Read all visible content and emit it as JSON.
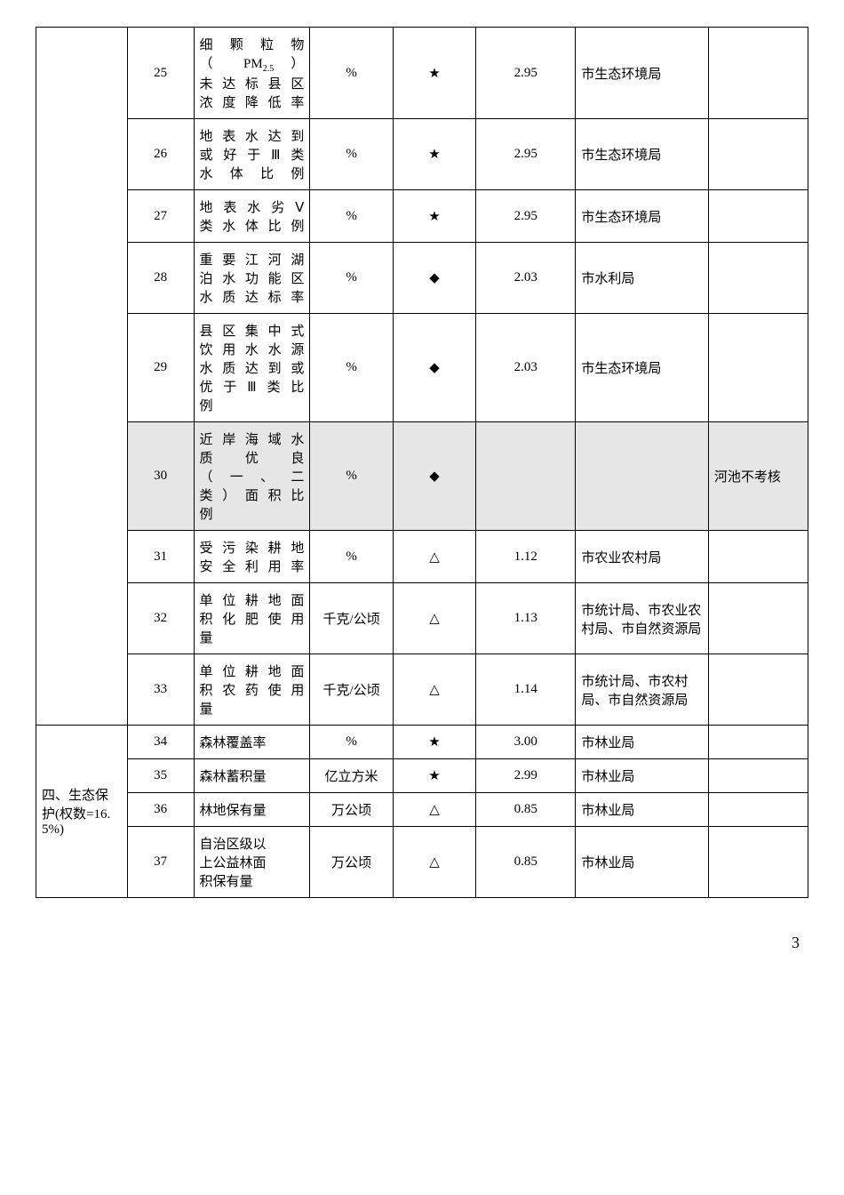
{
  "rows": [
    {
      "no": "25",
      "indicator_html": "细 颗 粒 物<br>（ PM<sub>2.5</sub> ）<br>未达标县区<br>浓度降低率",
      "unit": "%",
      "mark": "★",
      "weight": "2.95",
      "owner": "市生态环境局",
      "note": "",
      "shade": false,
      "ownerLeft": true
    },
    {
      "no": "26",
      "indicator_html": "地表水达到<br>或好于Ⅲ类<br>水体比例",
      "unit": "%",
      "mark": "★",
      "weight": "2.95",
      "owner": "市生态环境局",
      "note": "",
      "shade": false,
      "ownerLeft": true
    },
    {
      "no": "27",
      "indicator_html": "地表水劣Ⅴ<br>类水体比例",
      "unit": "%",
      "mark": "★",
      "weight": "2.95",
      "owner": "市生态环境局",
      "note": "",
      "shade": false,
      "ownerLeft": true
    },
    {
      "no": "28",
      "indicator_html": "重要江河湖<br>泊水功能区<br>水质达标率",
      "unit": "%",
      "mark": "◆",
      "weight": "2.03",
      "owner": "市水利局",
      "note": "",
      "shade": false,
      "ownerLeft": true
    },
    {
      "no": "29",
      "indicator_html": "县区集中式<br>饮用水水源<br>水质达到或<br>优于Ⅲ类比<br>例",
      "unit": "%",
      "mark": "◆",
      "weight": "2.03",
      "owner": "市生态环境局",
      "note": "",
      "shade": false,
      "ownerLeft": true
    },
    {
      "no": "30",
      "indicator_html": "近岸海域水<br>质 优 良<br>（ 一 、 二<br>类）面积比<br>例",
      "unit": "%",
      "mark": "◆",
      "weight": "",
      "owner": "",
      "note": "河池不考核",
      "shade": true,
      "ownerLeft": false
    },
    {
      "no": "31",
      "indicator_html": "受污染耕地<br>安全利用率",
      "unit": "%",
      "mark": "△",
      "weight": "1.12",
      "owner": "市农业农村局",
      "note": "",
      "shade": false,
      "ownerLeft": true
    },
    {
      "no": "32",
      "indicator_html": "单位耕地面<br>积化肥使用<br>量",
      "unit": "千克/公顷",
      "mark": "△",
      "weight": "1.13",
      "owner": "市统计局、市农业农村局、市自然资源局",
      "note": "",
      "shade": false,
      "ownerLeft": true
    },
    {
      "no": "33",
      "indicator_html": "单位耕地面<br>积农药使用<br>量",
      "unit": "千克/公顷",
      "mark": "△",
      "weight": "1.14",
      "owner": "市统计局、市农村局、市自然资源局",
      "note": "",
      "shade": false,
      "ownerLeft": true
    }
  ],
  "section": {
    "label": "四、生态保护(权数=16.5%)",
    "rows": [
      {
        "no": "34",
        "indicator": "森林覆盖率",
        "unit": "%",
        "mark": "★",
        "weight": "3.00",
        "owner": "市林业局",
        "note": ""
      },
      {
        "no": "35",
        "indicator": "森林蓄积量",
        "unit": "亿立方米",
        "mark": "★",
        "weight": "2.99",
        "owner": "市林业局",
        "note": ""
      },
      {
        "no": "36",
        "indicator": "林地保有量",
        "unit": "万公顷",
        "mark": "△",
        "weight": "0.85",
        "owner": "市林业局",
        "note": ""
      },
      {
        "no": "37",
        "indicator_html": "自治区级以<br>上公益林面<br>积保有量",
        "unit": "万公顷",
        "mark": "△",
        "weight": "0.85",
        "owner": "市林业局",
        "note": ""
      }
    ]
  },
  "page": "3"
}
